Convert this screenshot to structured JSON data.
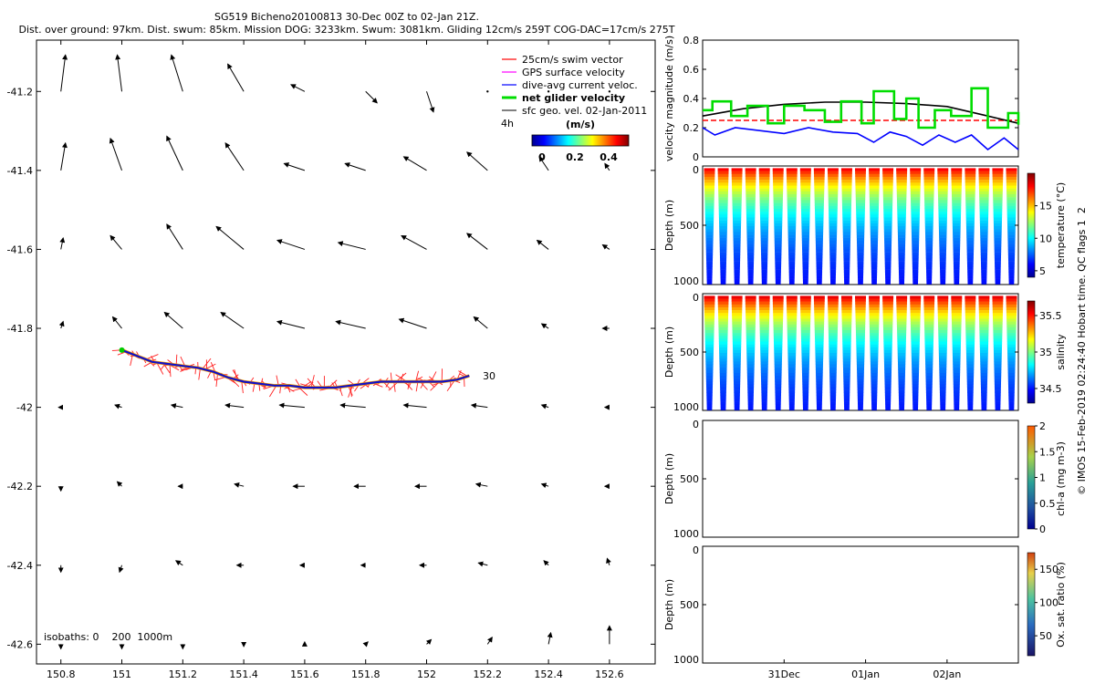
{
  "title_line1": "SG519 Bicheno20100813 30-Dec 00Z to 02-Jan 21Z.",
  "title_line2": "Dist. over ground: 97km. Dist. swum: 85km. Mission DOG: 3233km. Swum: 3081km. Gliding 12cm/s 259T COG-DAC=17cm/s 275T",
  "side_credit": "© IMOS 15-Feb-2019 02:24:40 Hobart time. QC flags 1  2",
  "chart_data": [
    {
      "type": "scatter",
      "name": "map",
      "xlim": [
        150.72,
        152.75
      ],
      "ylim": [
        -42.65,
        -41.07
      ],
      "xticks": [
        "150.8",
        "151",
        "151.2",
        "151.4",
        "151.6",
        "151.8",
        "152",
        "152.2",
        "152.4",
        "152.6"
      ],
      "xtick_values": [
        150.8,
        151.0,
        151.2,
        151.4,
        151.6,
        151.8,
        152.0,
        152.2,
        152.4,
        152.6
      ],
      "yticks": [
        "-41.2",
        "-41.4",
        "-41.6",
        "-41.8",
        "-42",
        "-42.2",
        "-42.4",
        "-42.6"
      ],
      "ytick_values": [
        -41.2,
        -41.4,
        -41.6,
        -41.8,
        -42.0,
        -42.2,
        -42.4,
        -42.6
      ],
      "legend": [
        {
          "label": "25cm/s swim vector",
          "color": "#ff0000"
        },
        {
          "label": "GPS surface velocity",
          "color": "#ff00ff"
        },
        {
          "label": "dive-avg current veloc.",
          "color": "#0000ff"
        },
        {
          "label": "net glider velocity",
          "color": "#00dd00"
        },
        {
          "label": "sfc geo. vel. 02-Jan-2011",
          "color": "#000000"
        }
      ],
      "legend_4h": "4h",
      "colorbar_label": "(m/s)",
      "colorbar_ticks": [
        "0",
        "0.2",
        "0.4"
      ],
      "colorbar_range": [
        0,
        0.5
      ],
      "isobaths_label": "isobaths: 0    200  1000m",
      "track_end_label": "30",
      "track_lon": [
        151.0,
        151.05,
        151.1,
        151.15,
        151.2,
        151.25,
        151.3,
        151.35,
        151.4,
        151.45,
        151.5,
        151.55,
        151.6,
        151.65,
        151.7,
        151.75,
        151.8,
        151.85,
        151.9,
        151.95,
        152.0,
        152.05,
        152.1,
        152.14
      ],
      "track_lat": [
        -41.855,
        -41.87,
        -41.885,
        -41.89,
        -41.895,
        -41.9,
        -41.91,
        -41.925,
        -41.935,
        -41.94,
        -41.945,
        -41.945,
        -41.95,
        -41.95,
        -41.95,
        -41.945,
        -41.94,
        -41.935,
        -41.935,
        -41.935,
        -41.935,
        -41.935,
        -41.93,
        -41.92
      ],
      "geo_vel_grid": {
        "lons": [
          150.8,
          151.0,
          151.2,
          151.4,
          151.6,
          151.8,
          152.0,
          152.2,
          152.4,
          152.6
        ],
        "lats": [
          -41.2,
          -41.4,
          -41.6,
          -41.8,
          -42.0,
          -42.2,
          -42.4,
          -42.6
        ],
        "u": [
          [
            0.02,
            -0.02,
            -0.05,
            -0.07,
            -0.06,
            0.05,
            0.03,
            0.0,
            0.0,
            0.0
          ],
          [
            0.02,
            -0.05,
            -0.07,
            -0.08,
            -0.09,
            -0.09,
            -0.1,
            -0.09,
            -0.04,
            -0.02
          ],
          [
            0.01,
            -0.05,
            -0.07,
            -0.12,
            -0.12,
            -0.12,
            -0.11,
            -0.09,
            -0.05,
            -0.03
          ],
          [
            0.01,
            -0.04,
            -0.08,
            -0.1,
            -0.12,
            -0.13,
            -0.12,
            -0.06,
            -0.03,
            -0.03
          ],
          [
            -0.01,
            -0.03,
            -0.05,
            -0.08,
            -0.11,
            -0.11,
            -0.1,
            -0.07,
            -0.03,
            -0.02
          ],
          [
            0.0,
            -0.02,
            -0.02,
            -0.04,
            -0.05,
            -0.05,
            -0.05,
            -0.05,
            -0.03,
            -0.02
          ],
          [
            0.0,
            -0.01,
            -0.03,
            -0.03,
            -0.02,
            -0.02,
            -0.03,
            -0.04,
            -0.02,
            -0.01
          ],
          [
            0.0,
            0.0,
            0.0,
            0.0,
            0.0,
            0.01,
            0.02,
            0.02,
            0.01,
            0.0
          ]
        ],
        "v": [
          [
            0.16,
            0.16,
            0.16,
            0.12,
            0.03,
            -0.05,
            -0.09,
            0.0,
            0.0,
            0.0
          ],
          [
            0.12,
            0.14,
            0.15,
            0.12,
            0.03,
            0.03,
            0.06,
            0.08,
            0.06,
            0.03
          ],
          [
            0.05,
            0.06,
            0.11,
            0.1,
            0.04,
            0.03,
            0.06,
            0.07,
            0.04,
            0.02
          ],
          [
            0.03,
            0.05,
            0.07,
            0.07,
            0.03,
            0.03,
            0.04,
            0.05,
            0.02,
            0.0
          ],
          [
            0.0,
            0.01,
            0.01,
            0.01,
            0.01,
            0.01,
            0.01,
            0.01,
            0.01,
            0.0
          ],
          [
            -0.02,
            0.02,
            0.0,
            0.01,
            0.0,
            0.0,
            0.0,
            0.01,
            0.01,
            0.0
          ],
          [
            -0.03,
            -0.03,
            0.02,
            0.0,
            0.0,
            0.0,
            0.0,
            0.01,
            0.02,
            0.03
          ],
          [
            -0.02,
            -0.02,
            -0.02,
            -0.01,
            0.01,
            0.01,
            0.02,
            0.03,
            0.05,
            0.08
          ]
        ]
      }
    },
    {
      "type": "line",
      "name": "velocity",
      "ylabel": "velocity magnitude (m/s)",
      "ylim": [
        0,
        0.8
      ],
      "yticks": [
        "0",
        "0.2",
        "0.4",
        "0.6",
        "0.8"
      ],
      "xlim": [
        0,
        3.875
      ],
      "series": [
        {
          "color": "#ff0000",
          "dash": true,
          "x": [
            0,
            3.875
          ],
          "y": [
            0.25,
            0.25
          ]
        },
        {
          "color": "#000000",
          "x": [
            0,
            0.5,
            1.0,
            1.5,
            2.0,
            2.5,
            3.0,
            3.5,
            3.875
          ],
          "y": [
            0.28,
            0.33,
            0.36,
            0.375,
            0.375,
            0.365,
            0.345,
            0.28,
            0.23
          ]
        },
        {
          "color": "#0000ff",
          "x": [
            0,
            0.15,
            0.4,
            0.7,
            1.0,
            1.3,
            1.6,
            1.9,
            2.1,
            2.3,
            2.5,
            2.7,
            2.9,
            3.1,
            3.3,
            3.5,
            3.7,
            3.875
          ],
          "y": [
            0.2,
            0.15,
            0.2,
            0.18,
            0.16,
            0.2,
            0.17,
            0.16,
            0.1,
            0.17,
            0.14,
            0.08,
            0.15,
            0.1,
            0.15,
            0.05,
            0.13,
            0.05
          ]
        },
        {
          "color": "#00dd00",
          "step": true,
          "x": [
            0,
            0.12,
            0.35,
            0.55,
            0.8,
            1.0,
            1.25,
            1.5,
            1.7,
            1.95,
            2.1,
            2.35,
            2.5,
            2.65,
            2.85,
            3.05,
            3.3,
            3.5,
            3.75,
            3.875
          ],
          "y": [
            0.32,
            0.38,
            0.28,
            0.35,
            0.23,
            0.35,
            0.32,
            0.24,
            0.38,
            0.23,
            0.45,
            0.26,
            0.4,
            0.2,
            0.32,
            0.28,
            0.47,
            0.2,
            0.3,
            0.22
          ]
        }
      ]
    },
    {
      "type": "scatter",
      "name": "temperature",
      "ylabel": "Depth (m)",
      "cbar_label": "temperature (°C)",
      "cbar_ticks": [
        "5",
        "10",
        "15"
      ],
      "cbar_range": [
        4,
        20
      ],
      "ylim": [
        1000,
        0
      ],
      "yticks": [
        "0",
        "500",
        "1000"
      ],
      "surface_value": 18,
      "bottom_value": 5,
      "n_dives": 23
    },
    {
      "type": "scatter",
      "name": "salinity",
      "ylabel": "Depth (m)",
      "cbar_label": "salinity",
      "cbar_ticks": [
        "34.5",
        "35",
        "35.5"
      ],
      "cbar_range": [
        34.3,
        35.7
      ],
      "ylim": [
        1000,
        0
      ],
      "yticks": [
        "0",
        "500",
        "1000"
      ],
      "surface_value": 35.55,
      "bottom_value": 34.4,
      "n_dives": 23
    },
    {
      "type": "scatter",
      "name": "chla",
      "ylabel": "Depth (m)",
      "cbar_label": "chl-a (mg m-3)",
      "cbar_ticks": [
        "0",
        "0.5",
        "1",
        "1.5",
        "2"
      ],
      "cbar_range": [
        0,
        2
      ],
      "ylim": [
        1000,
        0
      ],
      "yticks": [
        "0",
        "500",
        "1000"
      ]
    },
    {
      "type": "scatter",
      "name": "oxygen",
      "ylabel": "Depth (m)",
      "cbar_label": "Ox. sat. ratio (%)",
      "cbar_ticks": [
        "50",
        "100",
        "150"
      ],
      "cbar_range": [
        20,
        175
      ],
      "ylim": [
        1000,
        0
      ],
      "yticks": [
        "0",
        "500",
        "1000"
      ],
      "xticks": [
        "31Dec",
        "01Jan",
        "02Jan"
      ],
      "xtick_values": [
        1.0,
        2.0,
        3.0
      ]
    }
  ]
}
